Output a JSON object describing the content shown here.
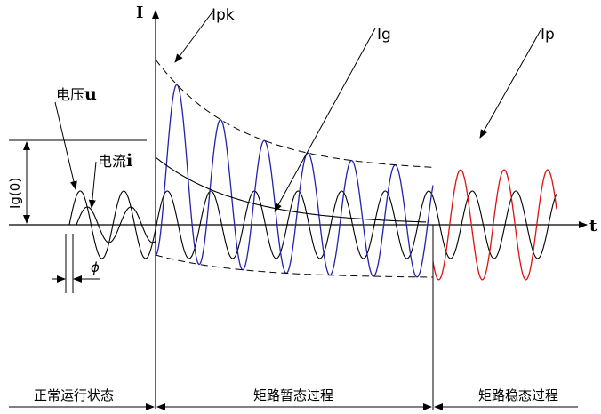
{
  "axes": {
    "y_label": "I",
    "x_label": "t"
  },
  "labels": {
    "ipk": "Ipk",
    "ig": "Ig",
    "ip": "Ip",
    "ig0": "Ig(0)",
    "voltage_prefix": "电压",
    "voltage_symbol": "u",
    "current_prefix": "电流",
    "current_symbol": "i",
    "phase": "ϕ"
  },
  "stages": {
    "normal": "正常运行状态",
    "transient": "矩路暂态过程",
    "steady": "矩路稳态过程"
  },
  "colors": {
    "normal_wave": "#000000",
    "transient_wave": "#2222aa",
    "steady_wave": "#dd1111",
    "envelope": "#000000"
  }
}
